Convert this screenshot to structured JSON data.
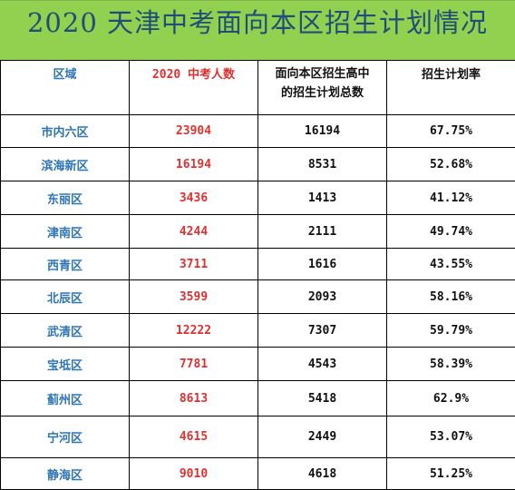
{
  "title": "2020 天津中考面向本区招生计划情况",
  "colors": {
    "title_background": "#92d050",
    "title_text": "#1f4e79",
    "district_text": "#2e75b6",
    "exam_text": "#e03030",
    "plain_text": "#111111"
  },
  "table": {
    "headers": {
      "district": "区域",
      "exam_count": "2020 中考人数",
      "plan_line1": "面向本区招生高中",
      "plan_line2": "的招生计划总数",
      "rate": "招生计划率"
    },
    "rows": [
      {
        "district": "市内六区",
        "exam_count": "23904",
        "plan_total": "16194",
        "rate": "67.75%"
      },
      {
        "district": "滨海新区",
        "exam_count": "16194",
        "plan_total": "8531",
        "rate": "52.68%"
      },
      {
        "district": "东丽区",
        "exam_count": "3436",
        "plan_total": "1413",
        "rate": "41.12%"
      },
      {
        "district": "津南区",
        "exam_count": "4244",
        "plan_total": "2111",
        "rate": "49.74%"
      },
      {
        "district": "西青区",
        "exam_count": "3711",
        "plan_total": "1616",
        "rate": "43.55%"
      },
      {
        "district": "北辰区",
        "exam_count": "3599",
        "plan_total": "2093",
        "rate": "58.16%"
      },
      {
        "district": "武清区",
        "exam_count": "12222",
        "plan_total": "7307",
        "rate": "59.79%"
      },
      {
        "district": "宝坻区",
        "exam_count": "7781",
        "plan_total": "4543",
        "rate": "58.39%"
      },
      {
        "district": "蓟州区",
        "exam_count": "8613",
        "plan_total": "5418",
        "rate": "62.9%"
      },
      {
        "district": "宁河区",
        "exam_count": "4615",
        "plan_total": "2449",
        "rate": "53.07%"
      },
      {
        "district": "静海区",
        "exam_count": "9010",
        "plan_total": "4618",
        "rate": "51.25%"
      }
    ]
  }
}
